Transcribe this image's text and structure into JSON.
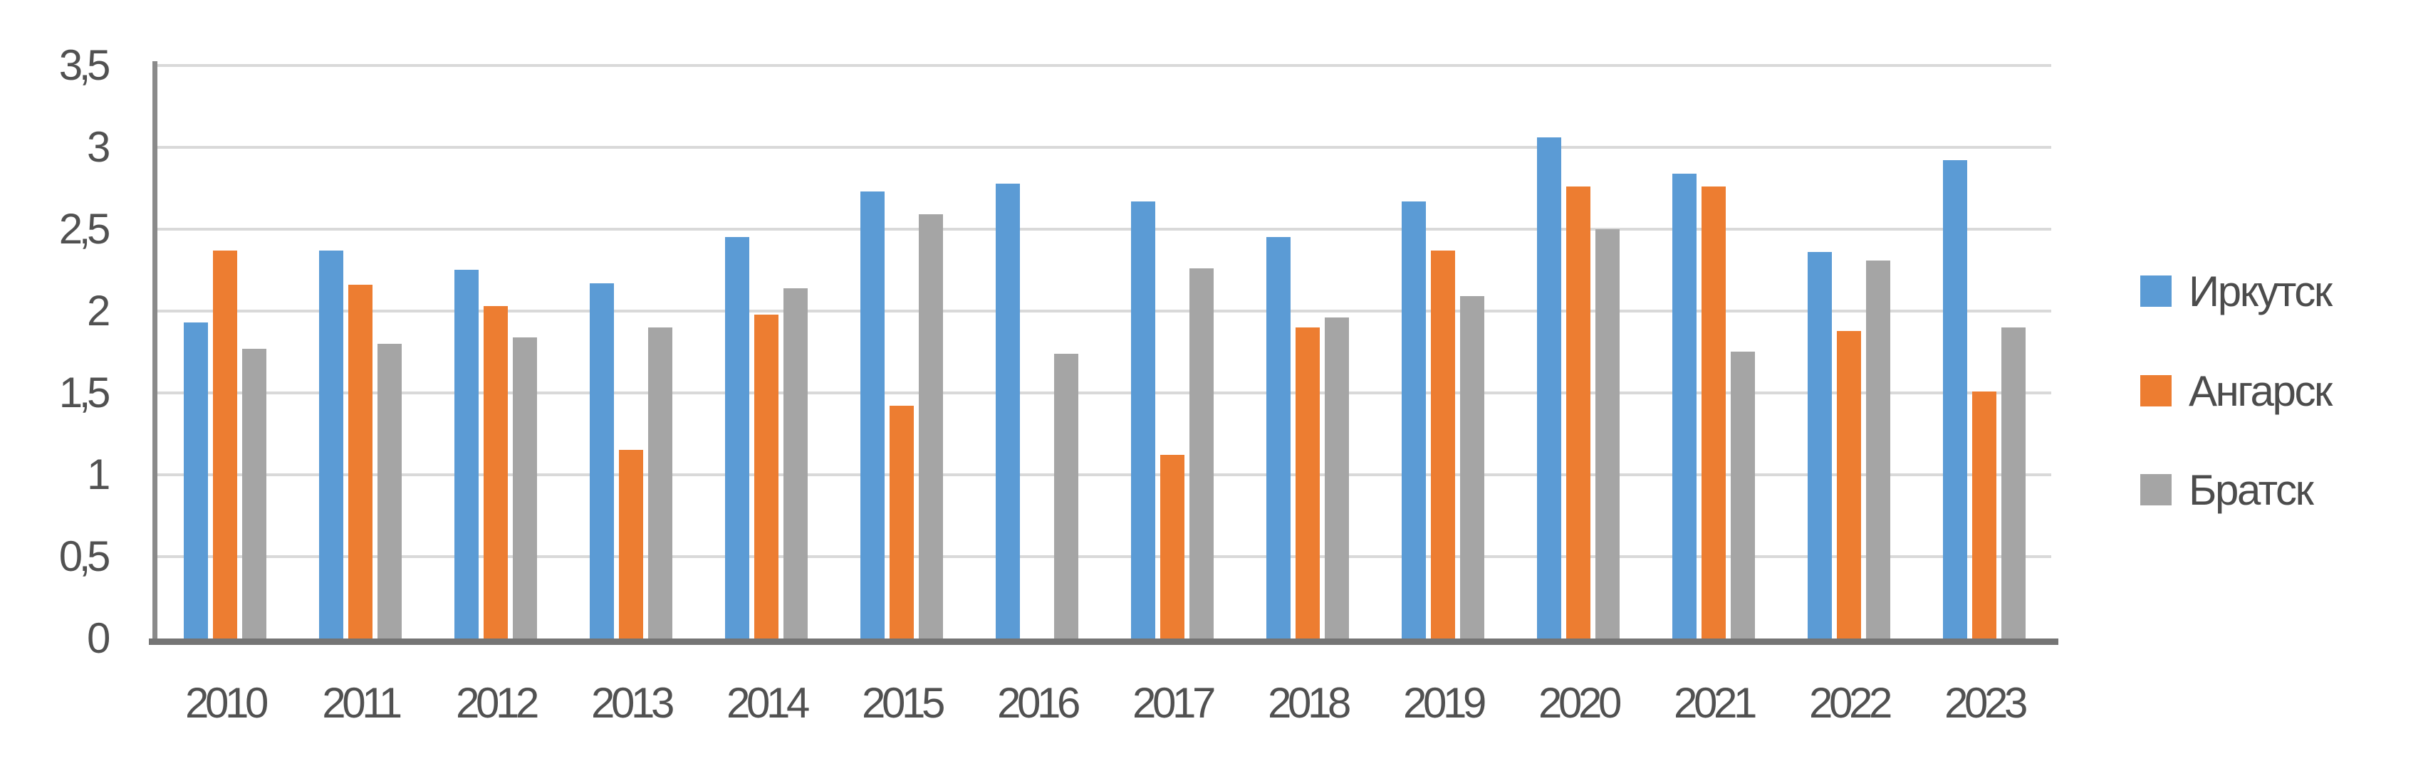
{
  "chart_data": {
    "type": "bar",
    "title": "",
    "categories": [
      "2010",
      "2011",
      "2012",
      "2013",
      "2014",
      "2015",
      "2016",
      "2017",
      "2018",
      "2019",
      "2020",
      "2021",
      "2022",
      "2023"
    ],
    "series": [
      {
        "name": "Иркутск",
        "color": "#5B9BD5",
        "values": [
          1.93,
          2.37,
          2.25,
          2.17,
          2.45,
          2.73,
          2.78,
          2.67,
          2.45,
          2.67,
          3.06,
          2.84,
          2.36,
          2.92
        ]
      },
      {
        "name": "Ангарск",
        "color": "#ED7D31",
        "values": [
          2.37,
          2.16,
          2.03,
          1.15,
          1.98,
          1.42,
          null,
          1.12,
          1.9,
          2.37,
          2.76,
          2.76,
          1.88,
          1.51
        ]
      },
      {
        "name": "Братск",
        "color": "#A5A5A5",
        "values": [
          1.77,
          1.8,
          1.84,
          1.9,
          2.14,
          2.59,
          1.74,
          2.26,
          1.96,
          2.09,
          2.5,
          1.75,
          2.31,
          1.9
        ]
      }
    ],
    "y_axis": {
      "min": 0,
      "max": 3.5,
      "step": 0.5,
      "tick_labels": [
        "0",
        "0,5",
        "1",
        "1,5",
        "2",
        "2,5",
        "3",
        "3,5"
      ]
    },
    "grid": true,
    "legend_position": "right",
    "colors": {
      "gridline": "#D9D9D9",
      "y_axis_line": "#8A8A8A",
      "x_axis_line": "#757575",
      "tick_text": "#515151"
    }
  }
}
